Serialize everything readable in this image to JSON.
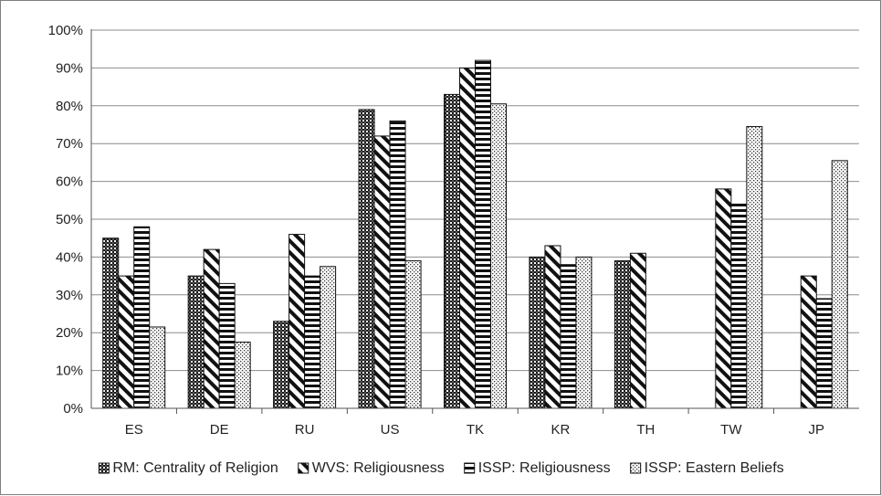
{
  "chart_data": {
    "type": "bar",
    "categories": [
      "ES",
      "DE",
      "RU",
      "US",
      "TK",
      "KR",
      "TH",
      "TW",
      "JP"
    ],
    "series": [
      {
        "name": "RM: Centrality of Religion",
        "pattern": "checker",
        "values": [
          45,
          35,
          23,
          79,
          83,
          40,
          39,
          null,
          null
        ]
      },
      {
        "name": "WVS: Religiousness",
        "pattern": "diagonal",
        "values": [
          35,
          42,
          46,
          72,
          90,
          43,
          41,
          58,
          35
        ]
      },
      {
        "name": "ISSP: Religiousness",
        "pattern": "horizontal",
        "values": [
          48,
          33,
          35,
          76,
          92,
          38,
          null,
          54,
          29
        ]
      },
      {
        "name": "ISSP: Eastern Beliefs",
        "pattern": "dots",
        "values": [
          21.5,
          17.5,
          37.5,
          39,
          80.5,
          40,
          null,
          74.5,
          65.5
        ]
      }
    ],
    "yticks": [
      "0%",
      "10%",
      "20%",
      "30%",
      "40%",
      "50%",
      "60%",
      "70%",
      "80%",
      "90%",
      "100%"
    ],
    "ylim": [
      0,
      100
    ],
    "grid": true,
    "legend_position": "bottom",
    "title": "",
    "xlabel": "",
    "ylabel": ""
  }
}
